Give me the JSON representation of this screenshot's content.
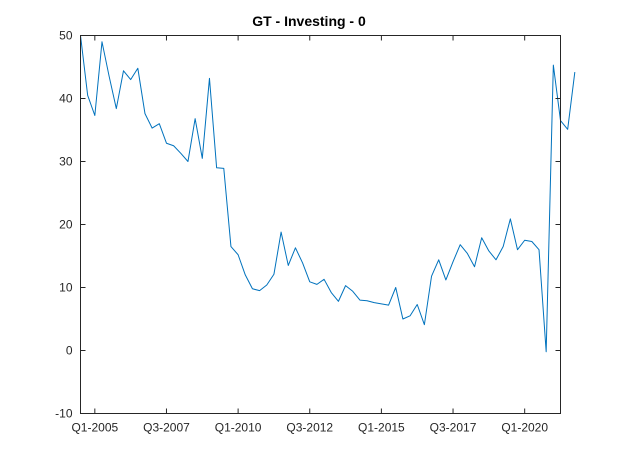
{
  "chart_data": {
    "type": "line",
    "title": "GT - Investing - 0",
    "xlabel": "",
    "ylabel": "",
    "ylim": [
      -10,
      50
    ],
    "y_ticks": [
      -10,
      0,
      10,
      20,
      30,
      40,
      50
    ],
    "x_tick_labels": [
      "Q1-2005",
      "Q3-2007",
      "Q1-2010",
      "Q3-2012",
      "Q1-2015",
      "Q3-2017",
      "Q1-2020"
    ],
    "x_tick_positions": [
      3,
      13,
      23,
      33,
      43,
      53,
      63
    ],
    "xlim": [
      1,
      68
    ],
    "line_color": "#0072BD",
    "grid": false,
    "series": [
      {
        "values": [
          50.0,
          40.5,
          37.3,
          49.0,
          43.5,
          38.4,
          44.4,
          43.0,
          44.8,
          37.6,
          35.3,
          36.0,
          32.9,
          32.5,
          31.3,
          30.0,
          36.8,
          30.5,
          43.2,
          29.0,
          28.9,
          16.5,
          15.2,
          12.0,
          9.8,
          9.5,
          10.4,
          12.1,
          18.8,
          13.5,
          16.3,
          13.9,
          10.9,
          10.5,
          11.3,
          9.2,
          7.8,
          10.3,
          9.4,
          8.0,
          7.9,
          7.6,
          7.4,
          7.2,
          10.0,
          5.0,
          5.5,
          7.3,
          4.1,
          11.8,
          14.4,
          11.2,
          14.1,
          16.8,
          15.4,
          13.3,
          17.9,
          15.8,
          14.4,
          16.5,
          20.9,
          16.0,
          17.5,
          17.3,
          16.0,
          -0.2,
          45.3,
          36.5,
          35.1,
          44.2
        ]
      }
    ]
  }
}
